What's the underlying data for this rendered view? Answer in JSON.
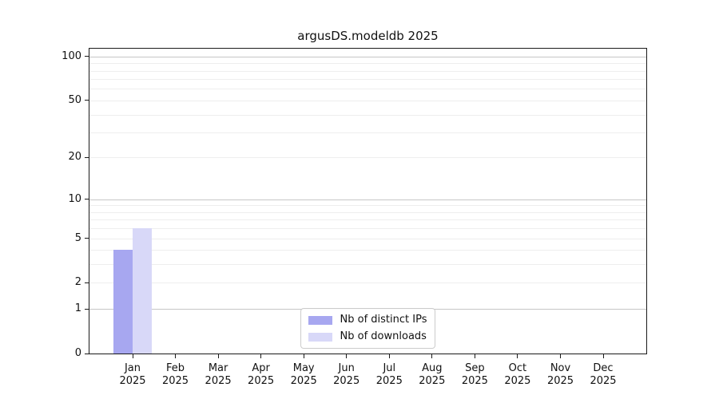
{
  "chart_data": {
    "type": "bar",
    "title": "argusDS.modeldb 2025",
    "x": {
      "categories": [
        "Jan",
        "Feb",
        "Mar",
        "Apr",
        "May",
        "Jun",
        "Jul",
        "Aug",
        "Sep",
        "Oct",
        "Nov",
        "Dec"
      ],
      "year_label": "2025"
    },
    "series": [
      {
        "name": "Nb of distinct IPs",
        "color": "#a7a7f0",
        "values": [
          4,
          0,
          0,
          0,
          0,
          0,
          0,
          0,
          0,
          0,
          0,
          0
        ]
      },
      {
        "name": "Nb of downloads",
        "color": "#d8d8f8",
        "values": [
          6,
          0,
          0,
          0,
          0,
          0,
          0,
          0,
          0,
          0,
          0,
          0
        ]
      }
    ],
    "y_axis": {
      "scale": "log1p",
      "ylim": [
        0,
        113
      ],
      "tick_labels": [
        100,
        50,
        20,
        10,
        5,
        2,
        1,
        0
      ],
      "major_gridlines": [
        1,
        10,
        100
      ],
      "minor_gridlines": [
        2,
        3,
        4,
        5,
        6,
        7,
        8,
        9,
        20,
        30,
        40,
        50,
        60,
        70,
        80,
        90
      ]
    },
    "legend": {
      "position": "lower center"
    },
    "colors": {
      "major_grid": "#c6c6c6",
      "minor_grid": "#eeeeee",
      "spine": "#1a1a1a",
      "text": "#111111"
    }
  }
}
